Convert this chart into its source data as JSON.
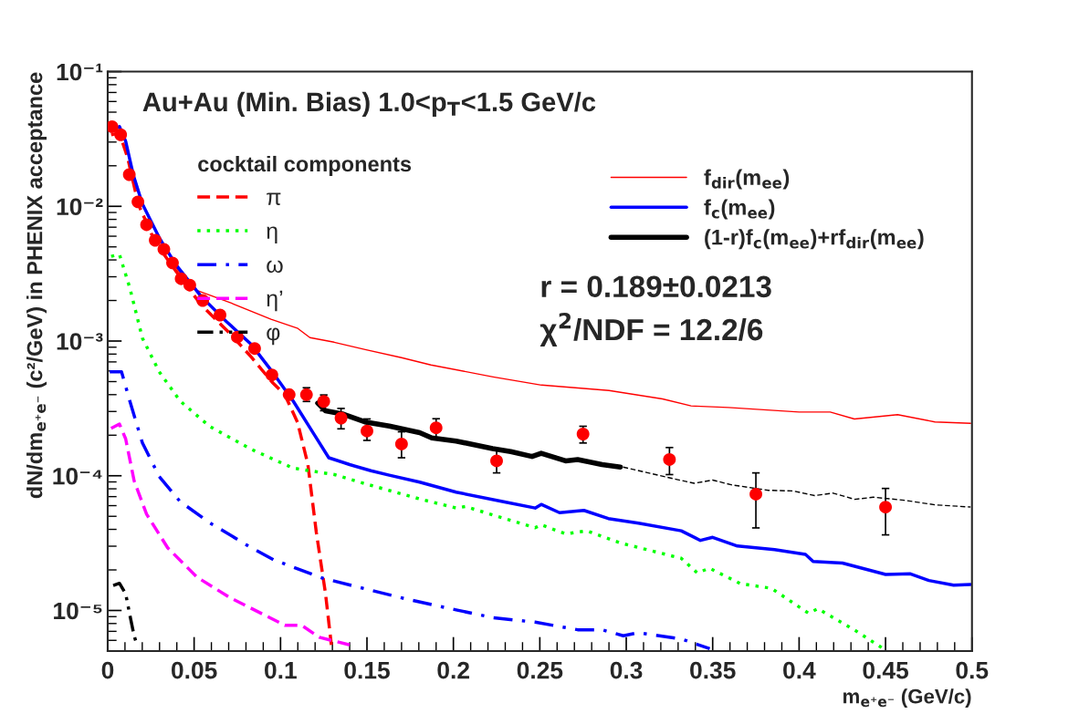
{
  "chart_data": {
    "type": "line",
    "title": "Au+Au (Min. Bias) 1.0<p$_{T}$<1.5 GeV/c",
    "xlabel": "m$_{e⁺e⁻}$ (GeV/c)",
    "ylabel": "dN/dm$_{e⁺e⁻}$ (c²/GeV) in PHENIX acceptance",
    "legend_title": "cocktail components",
    "annotations": [
      "r = 0.189±0.0213",
      "χ$^{2}$/NDF = 12.2/6"
    ],
    "log": "y",
    "grid": false,
    "legend": "top",
    "xlim": [
      0,
      0.5
    ],
    "xticks": [
      0,
      0.05,
      0.1,
      0.15,
      0.2,
      0.25,
      0.3,
      0.35,
      0.4,
      0.45,
      0.5
    ],
    "ylim": [
      5e-06,
      0.1
    ],
    "yticks": [
      {
        "value": 1e-05,
        "label": "10⁻⁵"
      },
      {
        "value": 0.0001,
        "label": "10⁻⁴"
      },
      {
        "value": 0.001,
        "label": "10⁻³"
      },
      {
        "value": 0.01,
        "label": "10⁻²"
      },
      {
        "value": 0.1,
        "label": "10⁻¹"
      }
    ],
    "series": [
      {
        "name": "π",
        "color": "#fe0000",
        "line_style": "dashed",
        "x": [
          0.002,
          0.0068,
          0.0116,
          0.0177,
          0.0274,
          0.0395,
          0.054,
          0.071,
          0.0831,
          0.0952,
          0.1025,
          0.1098,
          0.1158,
          0.1207,
          0.126,
          0.1294
        ],
        "values": [
          0.0339,
          0.0351,
          0.0228,
          0.01038,
          0.00545,
          0.0033,
          0.00186,
          0.00113,
          0.00076,
          0.000494,
          0.000399,
          0.00025,
          0.000122,
          3.8e-05,
          1.34e-05,
          5.55e-06
        ]
      },
      {
        "name": "η",
        "color": "#00ff00",
        "line_style": "dotted",
        "x": [
          0.002,
          0.0068,
          0.0128,
          0.0201,
          0.0298,
          0.0419,
          0.0589,
          0.0831,
          0.1073,
          0.1312,
          0.1488,
          0.1805,
          0.2016,
          0.2069,
          0.2297,
          0.2473,
          0.2508,
          0.2649,
          0.2772,
          0.2966,
          0.3318,
          0.3411,
          0.3482,
          0.3661,
          0.384,
          0.4054,
          0.4108,
          0.4322,
          0.4501
        ],
        "values": [
          0.00425,
          0.0044,
          0.00248,
          0.00105,
          0.000592,
          0.000359,
          0.000233,
          0.000157,
          0.000114,
          0.000102,
          8.73e-05,
          6.73e-05,
          5.76e-05,
          5.91e-05,
          4.81e-05,
          4.11e-05,
          4.33e-05,
          3.7e-05,
          3.9e-05,
          3.17e-05,
          2.44e-05,
          1.9e-05,
          2.06e-05,
          1.58e-05,
          1.46e-05,
          9.55e-06,
          1.03e-05,
          7.14e-06,
          5.07e-06
        ]
      },
      {
        "name": "ω",
        "color": "#0000fe",
        "line_style": "dashdot",
        "x": [
          0.0012,
          0.008,
          0.0128,
          0.0201,
          0.0298,
          0.0419,
          0.0589,
          0.0831,
          0.096,
          0.1242,
          0.1488,
          0.1735,
          0.2016,
          0.2227,
          0.2473,
          0.2719,
          0.286,
          0.2983,
          0.3071,
          0.3318,
          0.3483
        ],
        "values": [
          0.000592,
          0.000592,
          0.000359,
          0.000175,
          9.88e-05,
          6.43e-05,
          4.49e-05,
          2.92e-05,
          2.38e-05,
          1.74e-05,
          1.45e-05,
          1.21e-05,
          1.01e-05,
          8.85e-06,
          8.19e-06,
          7.19e-06,
          7.19e-06,
          6.49e-06,
          6.84e-06,
          6.15e-06,
          5.21e-06
        ]
      },
      {
        "name": "η’",
        "color": "#ff00ff",
        "line_style": "dashed",
        "x": [
          0.002,
          0.0068,
          0.0104,
          0.0153,
          0.0225,
          0.0347,
          0.0516,
          0.071,
          0.0904,
          0.1025,
          0.1122,
          0.1224,
          0.14
        ],
        "values": [
          0.000225,
          0.000242,
          0.000188,
          9.18e-05,
          5.19e-05,
          2.92e-05,
          1.77e-05,
          1.24e-05,
          9.29e-06,
          7.76e-06,
          7.76e-06,
          6.32e-06,
          5.55e-06
        ]
      },
      {
        "name": "φ",
        "color": "#010101",
        "line_style": "dashdotdot",
        "x": [
          0.0032,
          0.0068,
          0.0104,
          0.0128,
          0.0153,
          0.0172
        ],
        "values": [
          1.53e-05,
          1.59e-05,
          1.33e-05,
          9.29e-06,
          6.49e-06,
          5.43e-06
        ]
      },
      {
        "name": "f$_{dir}$(m$_{ee}$)",
        "color": "#ff0000",
        "line_style": "solid",
        "x": [
          0.038,
          0.05,
          0.0712,
          0.0945,
          0.11,
          0.117,
          0.131,
          0.149,
          0.17,
          0.187,
          0.223,
          0.251,
          0.29,
          0.321,
          0.3375,
          0.359,
          0.4,
          0.418,
          0.432,
          0.457,
          0.4786,
          0.4992
        ],
        "values": [
          0.00369,
          0.00242,
          0.00192,
          0.00145,
          0.00124,
          0.00106,
          0.00098,
          0.000865,
          0.000752,
          0.000664,
          0.000542,
          0.000471,
          0.000429,
          0.000372,
          0.00033,
          0.000321,
          0.000297,
          0.000297,
          0.000264,
          0.000284,
          0.000251,
          0.000245
        ]
      },
      {
        "name": "f$_{c}$(m$_{ee}$)",
        "color": "#0000ff",
        "line_style": "solid",
        "x": [
          0.0012,
          0.0068,
          0.0104,
          0.0148,
          0.0201,
          0.0298,
          0.0395,
          0.054,
          0.0686,
          0.0831,
          0.0952,
          0.1073,
          0.1195,
          0.1279,
          0.14,
          0.1523,
          0.1629,
          0.1805,
          0.2016,
          0.2297,
          0.2473,
          0.2508,
          0.2614,
          0.2755,
          0.2896,
          0.3071,
          0.3318,
          0.3429,
          0.35,
          0.3643,
          0.3858,
          0.4037,
          0.4081,
          0.4251,
          0.4501,
          0.4644,
          0.4751,
          0.4894,
          0.4992
        ],
        "values": [
          0.0364,
          0.0391,
          0.0304,
          0.01714,
          0.0104,
          0.00586,
          0.00368,
          0.00215,
          0.0014,
          0.000942,
          0.000592,
          0.000359,
          0.000202,
          0.000136,
          0.000121,
          0.000109,
          0.000101,
          8.97e-05,
          7.55e-05,
          6.39e-05,
          5.76e-05,
          6.13e-05,
          5.32e-05,
          5.53e-05,
          4.81e-05,
          4.45e-05,
          3.9e-05,
          3.31e-05,
          3.49e-05,
          3.01e-05,
          2.83e-05,
          2.61e-05,
          2.31e-05,
          2.25e-05,
          1.85e-05,
          1.87e-05,
          1.67e-05,
          1.54e-05,
          1.56e-05
        ]
      },
      {
        "name": "(1-r)f$_{c}$(m$_{ee}$)+rf$_{dir}$(m$_{ee}$)",
        "color": "#000000",
        "line_style": "solid",
        "x": [
          0.1215,
          0.126,
          0.1365,
          0.1488,
          0.1629,
          0.1805,
          0.1875,
          0.2016,
          0.2227,
          0.2332,
          0.2455,
          0.2508,
          0.2649,
          0.2719,
          0.286,
          0.2966
        ],
        "values": [
          0.000346,
          0.000304,
          0.000286,
          0.000251,
          0.000234,
          0.000209,
          0.000191,
          0.000181,
          0.000159,
          0.000151,
          0.000139,
          0.000147,
          0.000129,
          0.000132,
          0.000121,
          0.000116
        ]
      },
      {
        "color": "#020202",
        "line_style": "dashed",
        "x": [
          0.2982,
          0.3232,
          0.3393,
          0.35,
          0.3607,
          0.3822,
          0.3965,
          0.409,
          0.4197,
          0.4322,
          0.443,
          0.4608,
          0.4787,
          0.4992
        ],
        "values": [
          0.000116,
          9.77e-05,
          8.79e-05,
          9.29e-05,
          8.57e-05,
          7.8e-05,
          7.71e-05,
          7.13e-05,
          7.43e-05,
          6.68e-05,
          6.93e-05,
          6.58e-05,
          6.08e-05,
          5.86e-05
        ]
      },
      {
        "type": "scatter",
        "color": "#fd0000",
        "marker": "circle",
        "x": [
          0.0025,
          0.0075,
          0.0125,
          0.0175,
          0.0225,
          0.0275,
          0.0325,
          0.0375,
          0.0425,
          0.0475,
          0.055,
          0.065,
          0.075,
          0.085,
          0.095,
          0.105,
          0.115,
          0.125,
          0.135,
          0.15,
          0.17,
          0.19,
          0.225,
          0.275,
          0.325,
          0.375,
          0.45
        ],
        "values": [
          0.039,
          0.034,
          0.0172,
          0.0108,
          0.0073,
          0.0056,
          0.0048,
          0.0038,
          0.0029,
          0.0026,
          0.002,
          0.00156,
          0.00107,
          0.00088,
          0.00056,
          0.0004,
          0.0004,
          0.000356,
          0.000268,
          0.000215,
          0.000172,
          0.000227,
          0.000129,
          0.000204,
          0.000132,
          7.3e-05,
          5.85e-05
        ],
        "errors": [
          null,
          null,
          null,
          null,
          null,
          null,
          null,
          null,
          null,
          null,
          null,
          null,
          null,
          null,
          null,
          null,
          [
            0.000356,
            0.00045
          ],
          [
            0.000304,
            0.000398
          ],
          [
            0.000223,
            0.000316
          ],
          [
            0.000183,
            0.000264
          ],
          [
            0.000136,
            0.000212
          ],
          [
            0.000191,
            0.000265
          ],
          [
            0.000105,
            0.000155
          ],
          [
            0.000175,
            0.000233
          ],
          [
            0.000102,
            0.000162
          ],
          [
            4.1e-05,
            0.000105
          ],
          [
            3.64e-05,
            8.05e-05
          ]
        ]
      }
    ]
  }
}
